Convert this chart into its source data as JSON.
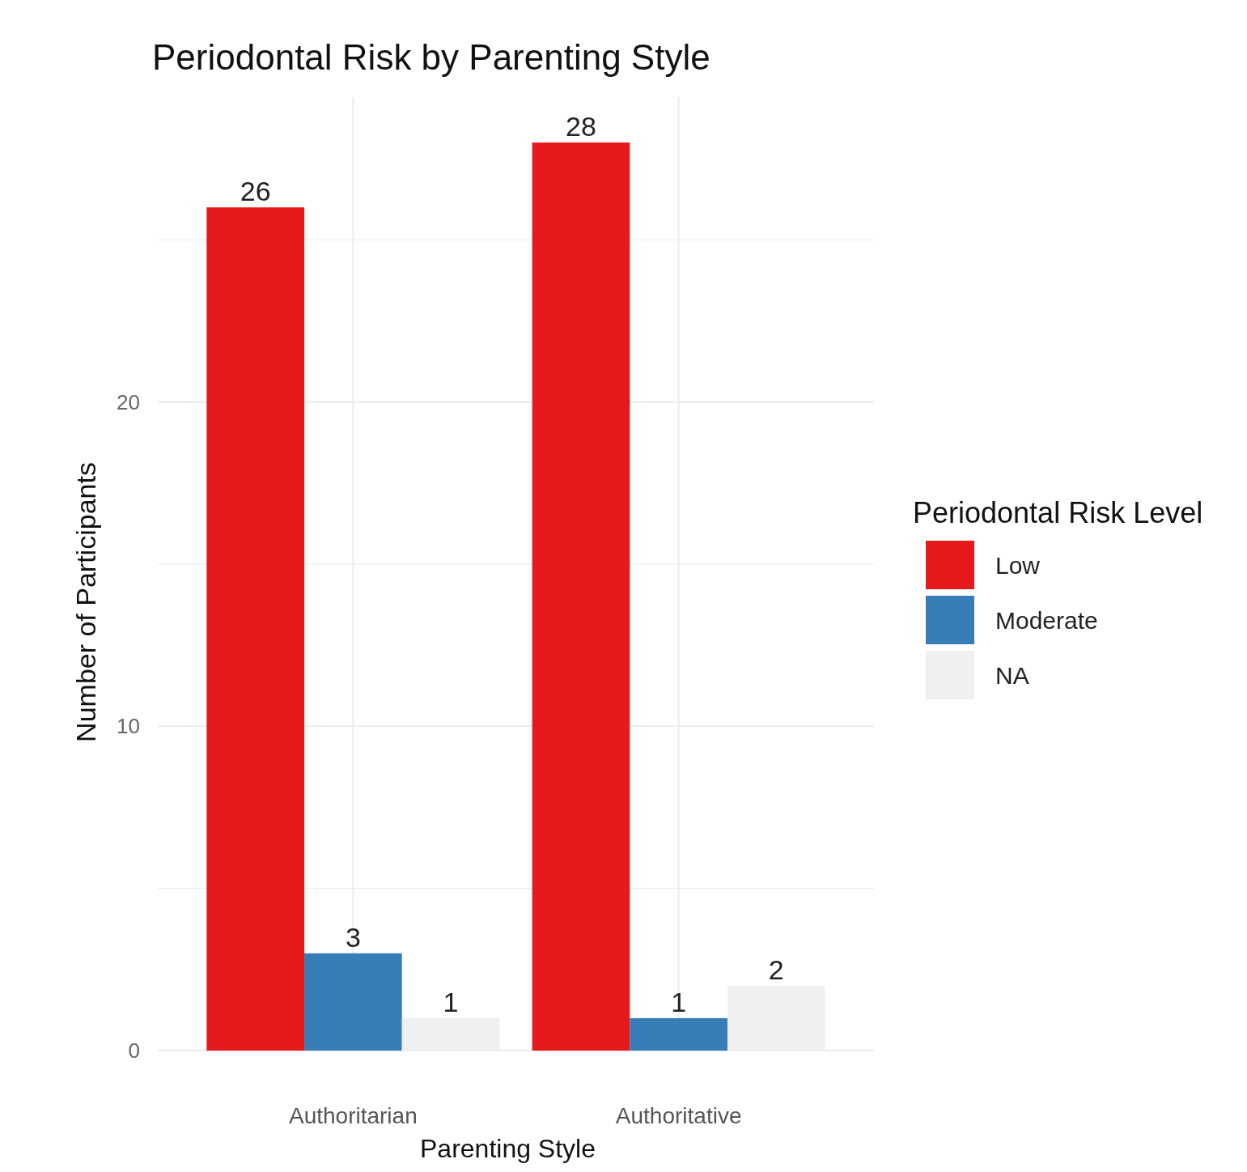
{
  "chart_data": {
    "type": "bar",
    "title": "Periodontal Risk by Parenting Style",
    "xlabel": "Parenting Style",
    "ylabel": "Number of Participants",
    "legend_title": "Periodontal Risk Level",
    "categories": [
      "Authoritarian",
      "Authoritative"
    ],
    "series": [
      {
        "name": "Low",
        "color": "#e41a1c",
        "values": [
          26,
          28
        ]
      },
      {
        "name": "Moderate",
        "color": "#377eb8",
        "values": [
          3,
          1
        ]
      },
      {
        "name": "NA",
        "color": "#f0f0f0",
        "values": [
          1,
          2
        ]
      }
    ],
    "ylim": [
      0,
      29.4
    ],
    "yticks": [
      0,
      {
        "value": 5,
        "label": null
      },
      10,
      {
        "value": 15,
        "label": null
      },
      20,
      {
        "value": 25,
        "label": null
      }
    ],
    "grid": true,
    "legend": "right",
    "data_labels": true
  }
}
